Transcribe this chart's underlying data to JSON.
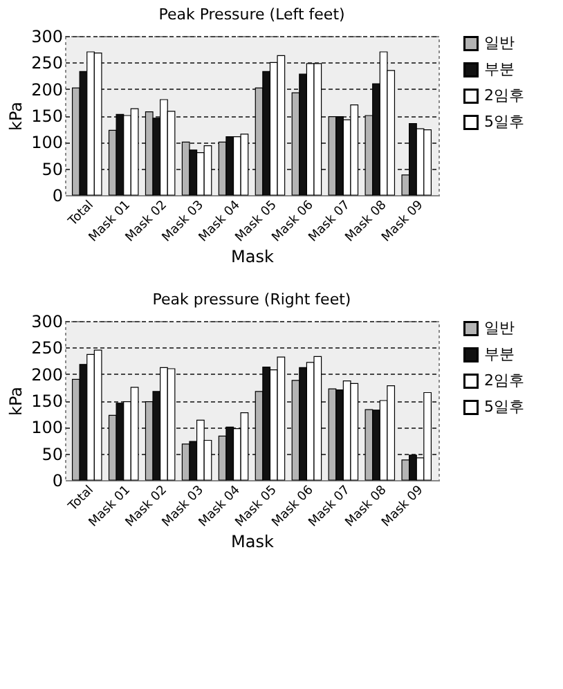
{
  "chart_data": [
    {
      "type": "bar",
      "title": "Peak Pressure (Left feet)",
      "xlabel": "Mask",
      "ylabel": "kPa",
      "categories": [
        "Total",
        "Mask 01",
        "Mask 02",
        "Mask 03",
        "Mask 04",
        "Mask 05",
        "Mask 06",
        "Mask 07",
        "Mask 08",
        "Mask 09"
      ],
      "series": [
        {
          "name": "일반",
          "color": "#b4b4b4",
          "values": [
            202,
            122,
            157,
            100,
            100,
            202,
            193,
            148,
            150,
            38
          ]
        },
        {
          "name": "부분",
          "color": "#111111",
          "values": [
            233,
            152,
            145,
            85,
            110,
            233,
            228,
            148,
            210,
            135
          ]
        },
        {
          "name": "2임후",
          "color": "#ffffff",
          "values": [
            270,
            150,
            180,
            80,
            110,
            250,
            248,
            142,
            270,
            125
          ]
        },
        {
          "name": "5일후",
          "color": "#ffffff",
          "values": [
            268,
            163,
            158,
            93,
            115,
            263,
            248,
            170,
            235,
            123
          ]
        }
      ],
      "ylim": [
        0,
        300
      ],
      "yticks": [
        0,
        50,
        100,
        150,
        200,
        250,
        300
      ],
      "grid": "y",
      "legend": "right"
    },
    {
      "type": "bar",
      "title": "Peak pressure (Right feet)",
      "xlabel": "Mask",
      "ylabel": "kPa",
      "categories": [
        "Total",
        "Mask 01",
        "Mask 02",
        "Mask 03",
        "Mask 04",
        "Mask 05",
        "Mask 06",
        "Mask 07",
        "Mask 08",
        "Mask 09"
      ],
      "series": [
        {
          "name": "일반",
          "color": "#b4b4b4",
          "values": [
            190,
            122,
            148,
            68,
            83,
            167,
            188,
            172,
            133,
            38
          ]
        },
        {
          "name": "부분",
          "color": "#111111",
          "values": [
            218,
            145,
            167,
            73,
            100,
            213,
            212,
            170,
            132,
            47
          ]
        },
        {
          "name": "2임후",
          "color": "#ffffff",
          "values": [
            237,
            148,
            212,
            113,
            97,
            208,
            222,
            187,
            150,
            42
          ]
        },
        {
          "name": "5일후",
          "color": "#ffffff",
          "values": [
            245,
            175,
            210,
            75,
            127,
            232,
            233,
            182,
            178,
            165
          ]
        }
      ],
      "ylim": [
        0,
        300
      ],
      "yticks": [
        0,
        50,
        100,
        150,
        200,
        250,
        300
      ],
      "grid": "y",
      "legend": "right"
    }
  ]
}
